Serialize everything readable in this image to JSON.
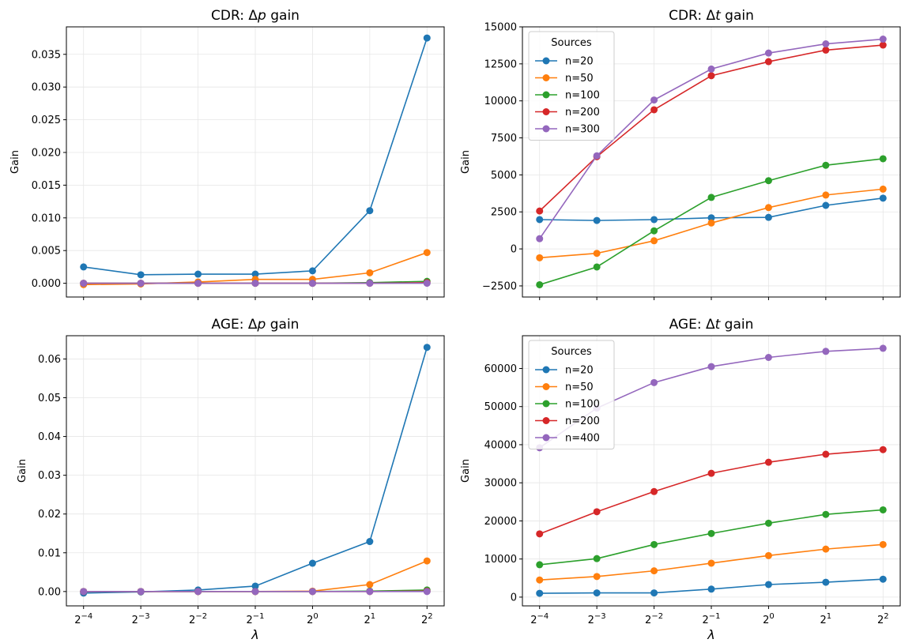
{
  "colors": {
    "n=20": "#1f77b4",
    "n=50": "#ff7f0e",
    "n=100": "#2ca02c",
    "n=200": "#d62728",
    "n=300": "#9467bd",
    "n=400": "#9467bd",
    "grid": "#e6e6e6"
  },
  "shared": {
    "x_tick_labels": [
      {
        "base": "2",
        "exp": "−4"
      },
      {
        "base": "2",
        "exp": "−3"
      },
      {
        "base": "2",
        "exp": "−2"
      },
      {
        "base": "2",
        "exp": "−1"
      },
      {
        "base": "2",
        "exp": "0"
      },
      {
        "base": "2",
        "exp": "1"
      },
      {
        "base": "2",
        "exp": "2"
      }
    ],
    "xlabel": "λ"
  },
  "chart_data": [
    {
      "id": "cdr-dp",
      "type": "line",
      "title_prefix": "CDR: Δ",
      "title_var": "p",
      "title_suffix": " gain",
      "ylabel": "Gain",
      "xlabel": "",
      "x": [
        -4,
        -3,
        -2,
        -1,
        0,
        1,
        2
      ],
      "x_scale": "log2",
      "ylim": [
        -0.0021,
        0.0392
      ],
      "yticks": [
        0.0,
        0.005,
        0.01,
        0.015,
        0.02,
        0.025,
        0.03,
        0.035
      ],
      "ytick_labels": [
        "0.000",
        "0.005",
        "0.010",
        "0.015",
        "0.020",
        "0.025",
        "0.030",
        "0.035"
      ],
      "grid": true,
      "legend": null,
      "series": [
        {
          "key": "n=20",
          "values": [
            0.0025,
            0.0013,
            0.0014,
            0.0014,
            0.0019,
            0.0111,
            0.0375
          ]
        },
        {
          "key": "n=50",
          "values": [
            -0.0002,
            -0.0001,
            0.0002,
            0.0006,
            0.0006,
            0.0016,
            0.0047
          ]
        },
        {
          "key": "n=100",
          "values": [
            0.0,
            0.0,
            0.0,
            0.0,
            0.0,
            0.0001,
            0.0003
          ]
        },
        {
          "key": "n=200",
          "values": [
            0.0,
            0.0,
            0.0,
            0.0,
            0.0,
            0.0,
            0.0001
          ]
        },
        {
          "key": "n=300",
          "values": [
            0.0,
            0.0,
            0.0,
            0.0,
            0.0,
            0.0,
            0.0
          ]
        }
      ]
    },
    {
      "id": "cdr-dt",
      "type": "line",
      "title_prefix": "CDR: Δ",
      "title_var": "t",
      "title_suffix": " gain",
      "ylabel": "Gain",
      "xlabel": "",
      "x": [
        -4,
        -3,
        -2,
        -1,
        0,
        1,
        2
      ],
      "x_scale": "log2",
      "ylim": [
        -3250,
        15000
      ],
      "yticks": [
        -2500,
        0,
        2500,
        5000,
        7500,
        10000,
        12500,
        15000
      ],
      "ytick_labels": [
        "−2500",
        "0",
        "2500",
        "5000",
        "7500",
        "10000",
        "12500",
        "15000"
      ],
      "grid": true,
      "legend": {
        "title": "Sources",
        "position": "top-left"
      },
      "series": [
        {
          "name": "n=20",
          "values": [
            1980,
            1920,
            1980,
            2100,
            2130,
            2940,
            3430
          ]
        },
        {
          "name": "n=50",
          "values": [
            -600,
            -300,
            550,
            1750,
            2790,
            3640,
            4040
          ]
        },
        {
          "name": "n=100",
          "values": [
            -2420,
            -1220,
            1220,
            3480,
            4610,
            5650,
            6090
          ]
        },
        {
          "name": "n=200",
          "values": [
            2560,
            6230,
            9400,
            11700,
            12650,
            13430,
            13770
          ]
        },
        {
          "name": "n=300",
          "values": [
            690,
            6290,
            10060,
            12150,
            13230,
            13850,
            14170
          ]
        }
      ]
    },
    {
      "id": "age-dp",
      "type": "line",
      "title_prefix": "AGE: Δ",
      "title_var": "p",
      "title_suffix": " gain",
      "ylabel": "Gain",
      "xlabel": "λ",
      "x": [
        -4,
        -3,
        -2,
        -1,
        0,
        1,
        2
      ],
      "x_scale": "log2",
      "ylim": [
        -0.0037,
        0.066
      ],
      "yticks": [
        0.0,
        0.01,
        0.02,
        0.03,
        0.04,
        0.05,
        0.06
      ],
      "ytick_labels": [
        "0.00",
        "0.01",
        "0.02",
        "0.03",
        "0.04",
        "0.05",
        "0.06"
      ],
      "grid": true,
      "legend": null,
      "series": [
        {
          "key": "n=20",
          "values": [
            -0.0004,
            -0.0001,
            0.0004,
            0.0014,
            0.0073,
            0.0129,
            0.063
          ]
        },
        {
          "key": "n=50",
          "values": [
            0.0,
            0.0,
            0.0,
            0.0,
            0.0001,
            0.0018,
            0.0079
          ]
        },
        {
          "key": "n=100",
          "values": [
            0.0,
            0.0,
            0.0,
            0.0,
            0.0,
            0.0001,
            0.0004
          ]
        },
        {
          "key": "n=200",
          "values": [
            0.0,
            0.0,
            0.0,
            0.0,
            0.0,
            0.0,
            0.0001
          ]
        },
        {
          "key": "n=400",
          "values": [
            0.0,
            0.0,
            0.0,
            0.0,
            0.0,
            0.0,
            0.0
          ]
        }
      ]
    },
    {
      "id": "age-dt",
      "type": "line",
      "title_prefix": "AGE: Δ",
      "title_var": "t",
      "title_suffix": " gain",
      "ylabel": "Gain",
      "xlabel": "λ",
      "x": [
        -4,
        -3,
        -2,
        -1,
        0,
        1,
        2
      ],
      "x_scale": "log2",
      "ylim": [
        -2300,
        68600
      ],
      "yticks": [
        0,
        10000,
        20000,
        30000,
        40000,
        50000,
        60000
      ],
      "ytick_labels": [
        "0",
        "10000",
        "20000",
        "30000",
        "40000",
        "50000",
        "60000"
      ],
      "grid": true,
      "legend": {
        "title": "Sources",
        "position": "top-left"
      },
      "series": [
        {
          "name": "n=20",
          "values": [
            1000,
            1100,
            1100,
            2100,
            3300,
            3900,
            4700
          ]
        },
        {
          "name": "n=50",
          "values": [
            4500,
            5400,
            6900,
            8900,
            10900,
            12600,
            13800
          ]
        },
        {
          "name": "n=100",
          "values": [
            8500,
            10100,
            13800,
            16700,
            19400,
            21700,
            22900
          ]
        },
        {
          "name": "n=200",
          "values": [
            16600,
            22400,
            27700,
            32500,
            35400,
            37500,
            38700
          ]
        },
        {
          "name": "n=400",
          "values": [
            39200,
            49600,
            56300,
            60500,
            62900,
            64500,
            65300
          ]
        }
      ]
    }
  ]
}
